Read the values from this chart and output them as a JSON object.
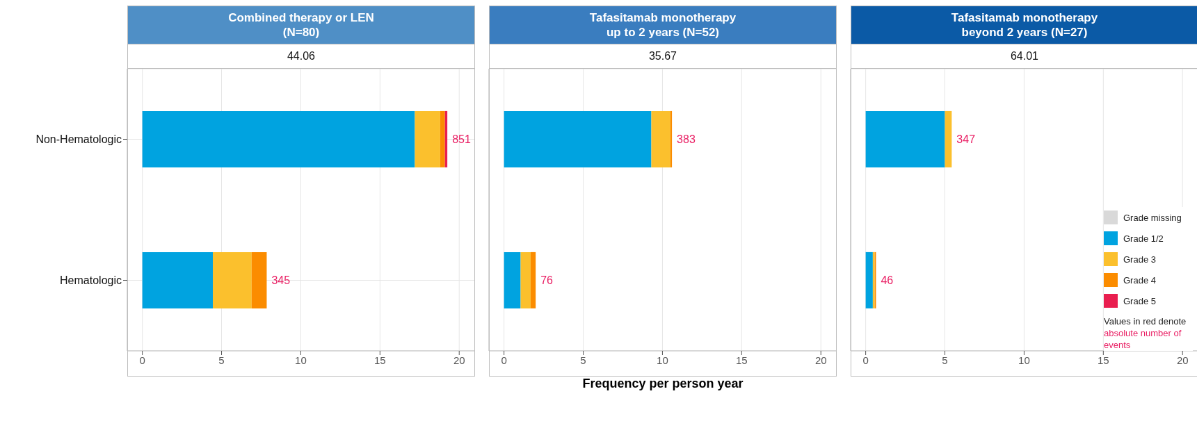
{
  "chart_data": [
    {
      "type": "bar",
      "orientation": "horizontal",
      "stacked": true,
      "title": "Combined therapy or LEN\n(N=80)",
      "subtitle": "44.06",
      "categories": [
        "Non-Hematologic",
        "Hematologic"
      ],
      "xlim": [
        -0.95,
        21
      ],
      "xticks": [
        0,
        5,
        10,
        15,
        20
      ],
      "grid": true,
      "legend": false,
      "series": [
        {
          "color": "#d9d9d9",
          "values": [
            0,
            0
          ]
        },
        {
          "color": "#00a3e0",
          "values": [
            17.2,
            4.45
          ]
        },
        {
          "color": "#fbc02d",
          "values": [
            1.6,
            2.45
          ]
        },
        {
          "color": "#fb8c00",
          "values": [
            0.3,
            0.95
          ]
        },
        {
          "color": "#e91e4f",
          "values": [
            0.15,
            0
          ]
        }
      ],
      "annotations": [
        {
          "text": "851",
          "x": 19.25,
          "y": "Non-Hematologic"
        },
        {
          "text": "345",
          "x": 7.85,
          "y": "Hematologic"
        }
      ]
    },
    {
      "type": "bar",
      "orientation": "horizontal",
      "stacked": true,
      "title": "Tafasitamab monotherapy\nup to 2 years (N=52)",
      "subtitle": "35.67",
      "xlabel": "Frequency per person year",
      "categories": [
        "Non-Hematologic",
        "Hematologic"
      ],
      "xlim": [
        -0.95,
        21
      ],
      "xticks": [
        0,
        5,
        10,
        15,
        20
      ],
      "grid": true,
      "legend": false,
      "tick_labels": "x",
      "series": [
        {
          "color": "#d9d9d9",
          "values": [
            0,
            0
          ]
        },
        {
          "color": "#00a3e0",
          "values": [
            9.3,
            1.05
          ]
        },
        {
          "color": "#fbc02d",
          "values": [
            1.2,
            0.63
          ]
        },
        {
          "color": "#fb8c00",
          "values": [
            0.1,
            0.32
          ]
        },
        {
          "color": "#e91e4f",
          "values": [
            0,
            0
          ]
        }
      ],
      "annotations": [
        {
          "text": "383",
          "x": 10.6,
          "y": "Non-Hematologic"
        },
        {
          "text": "76",
          "x": 2,
          "y": "Hematologic"
        }
      ]
    },
    {
      "type": "bar",
      "orientation": "horizontal",
      "stacked": true,
      "title": "Tafasitamab monotherapy\nbeyond 2 years (N=27)",
      "subtitle": "64.01",
      "categories": [
        "Non-Hematologic",
        "Hematologic"
      ],
      "xlim": [
        -0.95,
        21
      ],
      "xticks": [
        0,
        5,
        10,
        15,
        20
      ],
      "grid": true,
      "legend": "bottom right",
      "tick_labels": "x",
      "series": [
        {
          "name": "Grade missing",
          "color": "#d9d9d9",
          "values": [
            0,
            0
          ]
        },
        {
          "name": "Grade 1/2",
          "color": "#00a3e0",
          "values": [
            5.0,
            0.45
          ]
        },
        {
          "name": "Grade 3",
          "color": "#fbc02d",
          "values": [
            0.43,
            0.12
          ]
        },
        {
          "name": "Grade 4",
          "color": "#fb8c00",
          "values": [
            0,
            0.08
          ]
        },
        {
          "name": "Grade 5",
          "color": "#e91e4f",
          "values": [
            0,
            0
          ]
        }
      ],
      "annotations": [
        {
          "text": "347",
          "x": 5.43,
          "y": "Non-Hematologic"
        },
        {
          "text": "46",
          "x": 0.65,
          "y": "Hematologic"
        },
        "Values in red denote",
        "absolute number of events"
      ]
    }
  ]
}
